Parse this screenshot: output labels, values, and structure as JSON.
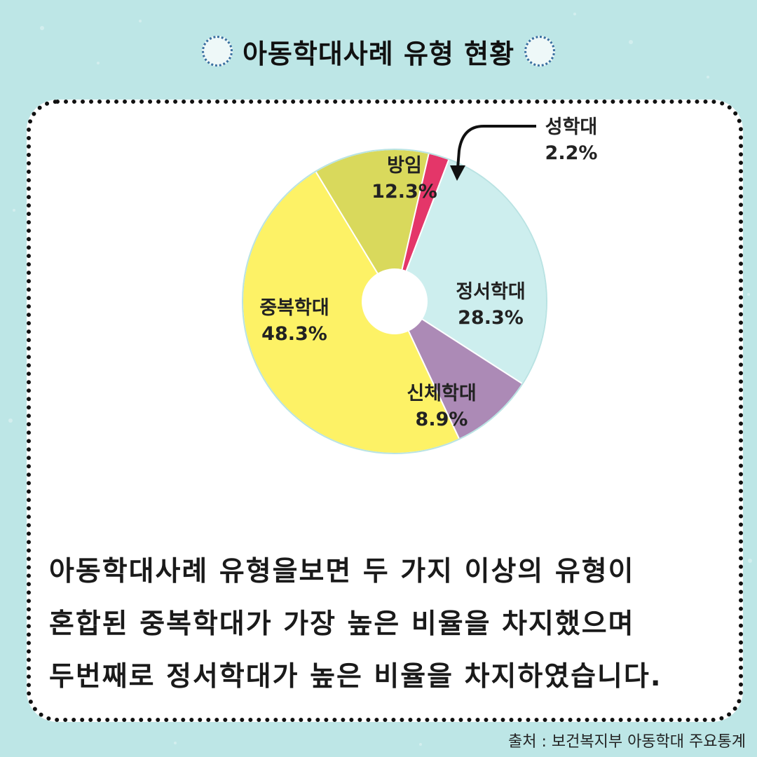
{
  "title": "아동학대사례 유형 현황",
  "chart_data": {
    "type": "pie",
    "title": "아동학대사례 유형 현황",
    "donut": true,
    "start_angle_deg": 13,
    "slices": [
      {
        "label": "성학대",
        "display": "2.2%",
        "value": 2.2,
        "color": "#e43669"
      },
      {
        "label": "정서학대",
        "display": "28.3%",
        "value": 28.3,
        "color": "#cdeeee"
      },
      {
        "label": "신체학대",
        "display": "8.9%",
        "value": 8.9,
        "color": "#ac8ab6"
      },
      {
        "label": "중복학대",
        "display": "48.3%",
        "value": 48.3,
        "color": "#fdf266"
      },
      {
        "label": "방임",
        "display": "12.3%",
        "value": 12.3,
        "color": "#d9d95c"
      }
    ]
  },
  "description": [
    "아동학대사례 유형을보면 두 가지 이상의 유형이",
    "혼합된 중복학대가 가장 높은 비율을 차지했으며",
    "두번째로 정서학대가 높은 비율을 차지하였습니다."
  ],
  "source": "출처 : 보건복지부 아동학대 주요통계"
}
